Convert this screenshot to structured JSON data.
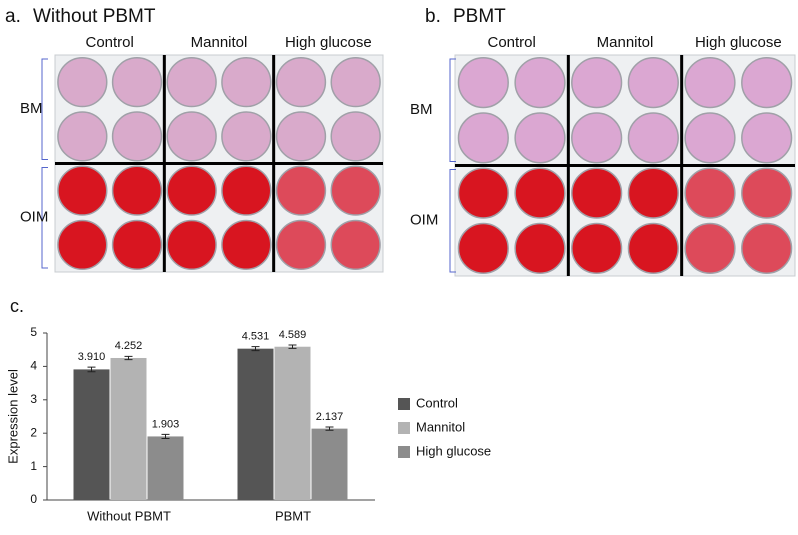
{
  "panels": [
    {
      "label": "a.",
      "title": "Without PBMT",
      "columns": [
        "Control",
        "Mannitol",
        "High glucose"
      ],
      "rows": [
        "BM",
        "OIM"
      ]
    },
    {
      "label": "b.",
      "title": "PBMT",
      "columns": [
        "Control",
        "Mannitol",
        "High glucose"
      ],
      "rows": [
        "BM",
        "OIM"
      ]
    }
  ],
  "chart_data": {
    "type": "bar",
    "label": "c.",
    "y_label": "Expression level",
    "categories": [
      "Without PBMT",
      "PBMT"
    ],
    "series": [
      {
        "name": "Control",
        "color": "#555555",
        "values": [
          3.91,
          4.531
        ],
        "value_labels": [
          "3.910",
          "4.531"
        ],
        "errors": [
          0.07,
          0.06
        ]
      },
      {
        "name": "Mannitol",
        "color": "#b3b3b3",
        "values": [
          4.252,
          4.589
        ],
        "value_labels": [
          "4.252",
          "4.589"
        ],
        "errors": [
          0.05,
          0.05
        ]
      },
      {
        "name": "High glucose",
        "color": "#8c8c8c",
        "values": [
          1.903,
          2.137
        ],
        "value_labels": [
          "1.903",
          "2.137"
        ],
        "errors": [
          0.06,
          0.05
        ]
      }
    ],
    "ylim": [
      0,
      5
    ],
    "yticks": [
      0,
      1,
      2,
      3,
      4,
      5
    ],
    "grid": false,
    "legend": "right"
  }
}
